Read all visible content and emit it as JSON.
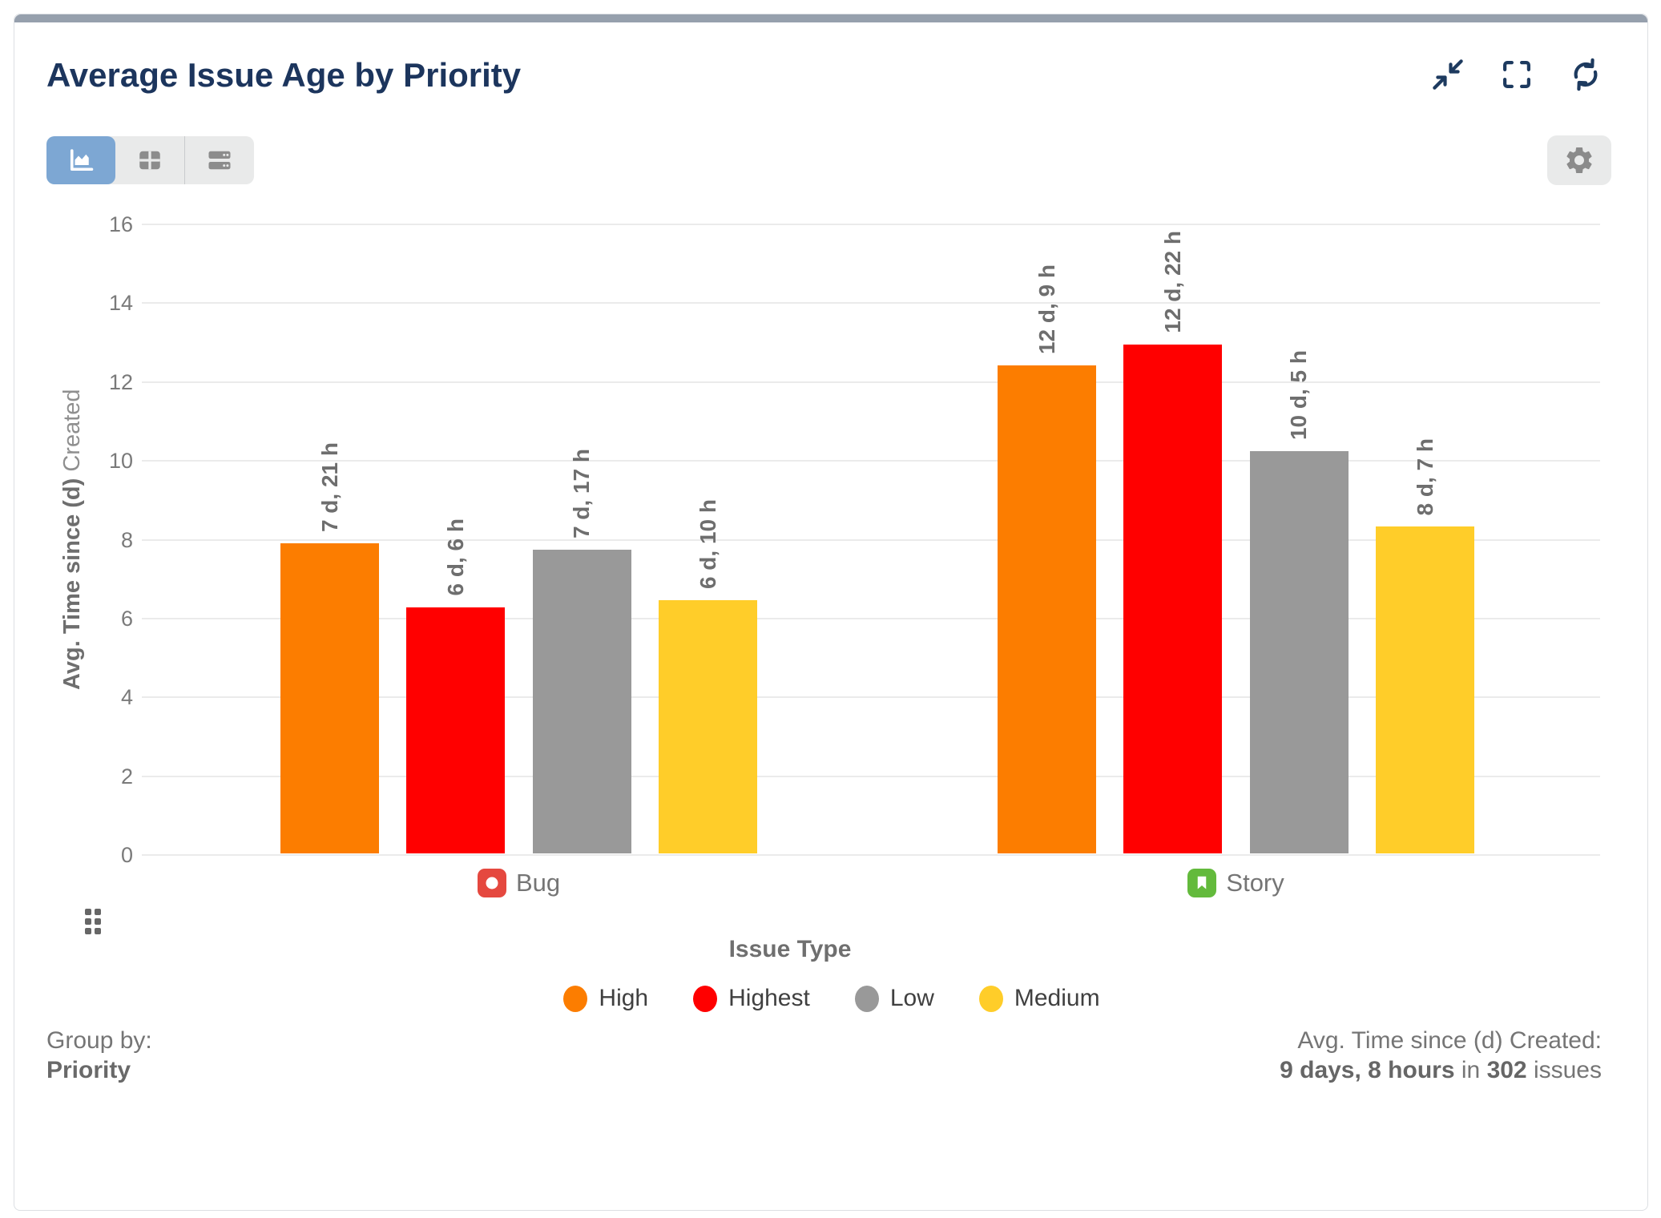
{
  "widget": {
    "title": "Average Issue Age by Priority"
  },
  "header": {
    "icons": [
      "collapse",
      "fullscreen",
      "refresh"
    ]
  },
  "toolbar": {
    "views": [
      {
        "id": "chart",
        "selected": true
      },
      {
        "id": "table",
        "selected": false
      },
      {
        "id": "rows",
        "selected": false
      }
    ],
    "settings_icon": "gear"
  },
  "chart_data": {
    "type": "bar",
    "title": "Average Issue Age by Priority",
    "xlabel": "Issue Type",
    "ylabel": "Avg. Time since (d) Created",
    "ylabel_bold_part": "Avg. Time since (d)",
    "ylabel_regular_part": " Created",
    "ylim": [
      0,
      16
    ],
    "ytick_interval": 2,
    "grid": true,
    "legend_position": "bottom",
    "categories": [
      "Bug",
      "Story"
    ],
    "category_icon_colors": {
      "Bug": "#E5483F",
      "Story": "#63BA3C"
    },
    "series": [
      {
        "name": "High",
        "color": "#FC7D00",
        "values": [
          7.875,
          12.375
        ],
        "value_labels": [
          "7 d, 21 h",
          "12 d, 9 h"
        ]
      },
      {
        "name": "Highest",
        "color": "#FF0000",
        "values": [
          6.25,
          12.9167
        ],
        "value_labels": [
          "6 d, 6 h",
          "12 d, 22 h"
        ]
      },
      {
        "name": "Low",
        "color": "#999999",
        "values": [
          7.7083,
          10.2083
        ],
        "value_labels": [
          "7 d, 17 h",
          "10 d, 5 h"
        ]
      },
      {
        "name": "Medium",
        "color": "#FFCD29",
        "values": [
          6.4167,
          8.2917
        ],
        "value_labels": [
          "6 d, 10 h",
          "8 d, 7 h"
        ]
      }
    ]
  },
  "footer": {
    "group_by_label": "Group by:",
    "group_by_value": "Priority",
    "summary_label": "Avg. Time since (d) Created:",
    "summary_parts": [
      {
        "text": "9 days, 8 hours",
        "bold": true
      },
      {
        "text": " in ",
        "bold": false
      },
      {
        "text": "302",
        "bold": true
      },
      {
        "text": " issues",
        "bold": false
      }
    ]
  }
}
